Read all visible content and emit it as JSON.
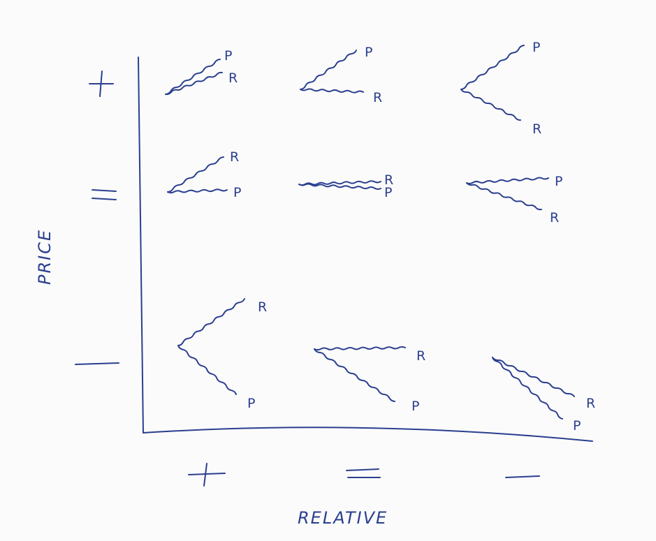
{
  "y_axis": {
    "label": "PRICE",
    "ticks": [
      "+",
      "=",
      "—"
    ]
  },
  "x_axis": {
    "label": "RELATIVE",
    "ticks": [
      "+",
      "=",
      "—"
    ]
  },
  "ink_color": "#2a3f8f",
  "cells": [
    {
      "price": "+",
      "relative": "+",
      "lines": [
        {
          "label": "P",
          "trend": "up"
        },
        {
          "label": "R",
          "trend": "up"
        }
      ]
    },
    {
      "price": "+",
      "relative": "=",
      "lines": [
        {
          "label": "P",
          "trend": "up"
        },
        {
          "label": "R",
          "trend": "flat"
        }
      ]
    },
    {
      "price": "+",
      "relative": "—",
      "lines": [
        {
          "label": "P",
          "trend": "up"
        },
        {
          "label": "R",
          "trend": "down"
        }
      ]
    },
    {
      "price": "=",
      "relative": "+",
      "lines": [
        {
          "label": "R",
          "trend": "up"
        },
        {
          "label": "P",
          "trend": "flat"
        }
      ]
    },
    {
      "price": "=",
      "relative": "=",
      "lines": [
        {
          "label": "R",
          "trend": "flat"
        },
        {
          "label": "P",
          "trend": "flat"
        }
      ]
    },
    {
      "price": "=",
      "relative": "—",
      "lines": [
        {
          "label": "P",
          "trend": "flat"
        },
        {
          "label": "R",
          "trend": "down"
        }
      ]
    },
    {
      "price": "—",
      "relative": "+",
      "lines": [
        {
          "label": "R",
          "trend": "up"
        },
        {
          "label": "P",
          "trend": "down"
        }
      ]
    },
    {
      "price": "—",
      "relative": "=",
      "lines": [
        {
          "label": "R",
          "trend": "flat"
        },
        {
          "label": "P",
          "trend": "down"
        }
      ]
    },
    {
      "price": "—",
      "relative": "—",
      "lines": [
        {
          "label": "R",
          "trend": "down"
        },
        {
          "label": "P",
          "trend": "down"
        }
      ]
    }
  ]
}
